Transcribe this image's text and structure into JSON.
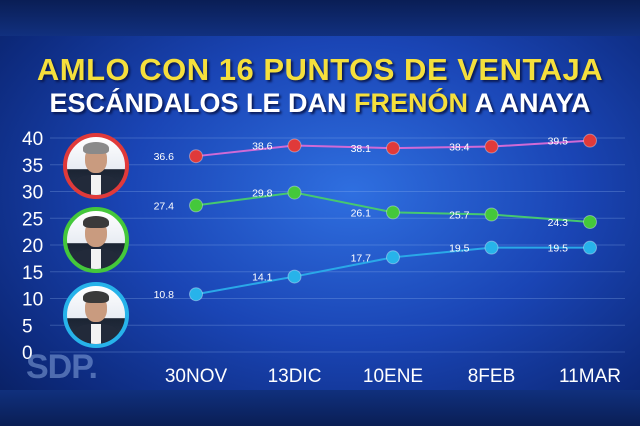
{
  "title_line1": "AMLO CON 16 PUNTOS DE VENTAJA",
  "title_line2_pre": "ESCÁNDALOS LE DAN ",
  "title_line2_hl": "FRENÓN",
  "title_line2_post": " A ANAYA",
  "watermark": "SDP.",
  "colors": {
    "title_accent": "#f5df3c",
    "amlo": "#e03a3a",
    "meade": "#44c83b",
    "anaya": "#27b3ea"
  },
  "chart_data": {
    "type": "line",
    "x": [
      "30NOV",
      "13DIC",
      "10ENE",
      "8FEB",
      "11MAR"
    ],
    "yticks": [
      0,
      5,
      10,
      15,
      20,
      25,
      30,
      35,
      40
    ],
    "ylim": [
      0,
      40
    ],
    "grid": true,
    "legend": "candidate photos at left",
    "series": [
      {
        "color": "#e03a3a",
        "line_color": "#d06ad6",
        "values": [
          36.6,
          38.6,
          38.1,
          38.4,
          39.5
        ]
      },
      {
        "color": "#44c83b",
        "line_color": "#46c870",
        "values": [
          27.4,
          29.8,
          26.1,
          25.7,
          24.3
        ]
      },
      {
        "color": "#27b3ea",
        "line_color": "#2aa8e8",
        "values": [
          10.8,
          14.1,
          17.7,
          19.5,
          19.5
        ]
      }
    ]
  }
}
